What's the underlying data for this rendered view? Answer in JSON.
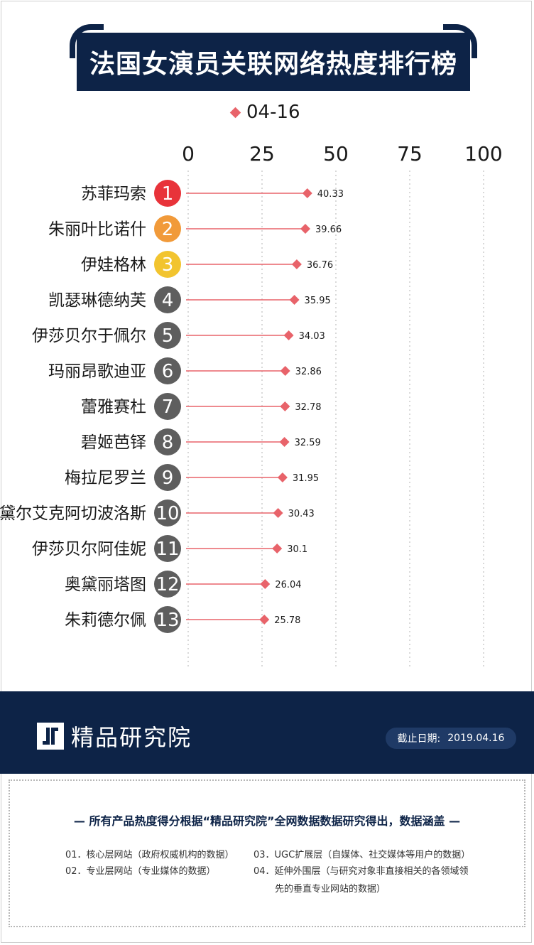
{
  "title": "法国女演员关联网络热度排行榜",
  "legend": {
    "label": "04-16",
    "color": "#e8636a"
  },
  "colors": {
    "navy": "#0d2347",
    "marker": "#e8636a",
    "rank1": "#e8333a",
    "rank2": "#f19a3a",
    "rank3": "#f2c42f",
    "rank_other": "#5e5e5e"
  },
  "chart_data": {
    "type": "scatter",
    "series": [
      {
        "name": "04-16",
        "values": [
          40.33,
          39.66,
          36.76,
          35.95,
          34.03,
          32.86,
          32.78,
          32.59,
          31.95,
          30.43,
          30.1,
          26.04,
          25.78
        ]
      }
    ],
    "categories": [
      "苏菲玛索",
      "朱丽叶比诺什",
      "伊娃格林",
      "凯瑟琳德纳芙",
      "伊莎贝尔于佩尔",
      "玛丽昂歌迪亚",
      "蕾雅赛杜",
      "碧姬芭铎",
      "梅拉尼罗兰",
      "阿黛尔艾克阿切波洛斯",
      "伊莎贝尔阿佳妮",
      "奥黛丽塔图",
      "朱莉德尔佩"
    ],
    "ranks": [
      "1",
      "2",
      "3",
      "4",
      "5",
      "6",
      "7",
      "8",
      "9",
      "10",
      "11",
      "12",
      "13"
    ],
    "value_labels": [
      "40.33",
      "39.66",
      "36.76",
      "35.95",
      "34.03",
      "32.86",
      "32.78",
      "32.59",
      "31.95",
      "30.43",
      "30.1",
      "26.04",
      "25.78"
    ],
    "xticks": [
      "0",
      "25",
      "50",
      "75",
      "100"
    ],
    "xlim": [
      0,
      100
    ],
    "grid": true,
    "legend_position": "top"
  },
  "footer": {
    "brand": "精品研究院",
    "date_label": "截止日期:",
    "date_value": "2019.04.16",
    "headline": "— 所有产品热度得分根据“精品研究院”全网数据数据研究得出，数据涵盖 —",
    "notes": [
      "01．核心层网站（政府权威机构的数据）",
      "02．专业层网站（专业媒体的数据）",
      "03．UGC扩展层（自媒体、社交媒体等用户的数据）",
      "04．延伸外围层（与研究对象非直接相关的各领域领",
      "先的垂直专业网站的数据）"
    ]
  }
}
